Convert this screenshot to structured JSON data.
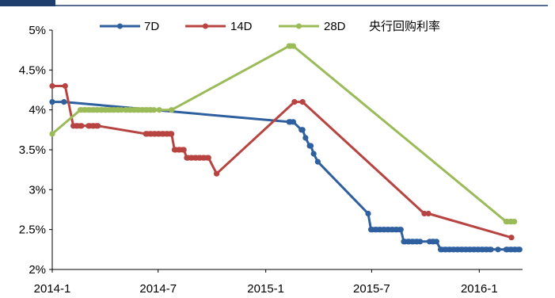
{
  "chart_data": {
    "type": "line",
    "title": "央行回购利率",
    "xlabel": "",
    "ylabel": "",
    "y_unit": "%",
    "ylim": [
      2,
      5
    ],
    "yticks": [
      {
        "value": 2,
        "label": "2%"
      },
      {
        "value": 2.5,
        "label": "2.5%"
      },
      {
        "value": 3,
        "label": "3%"
      },
      {
        "value": 3.5,
        "label": "3.5%"
      },
      {
        "value": 4,
        "label": "4%"
      },
      {
        "value": 4.5,
        "label": "4.5%"
      },
      {
        "value": 5,
        "label": "5%"
      }
    ],
    "xlim": [
      "2014-01-01",
      "2016-03-15"
    ],
    "xticks": [
      {
        "date": "2014-01-01",
        "label": "2014-1"
      },
      {
        "date": "2014-07-01",
        "label": "2014-7"
      },
      {
        "date": "2015-01-01",
        "label": "2015-1"
      },
      {
        "date": "2015-07-01",
        "label": "2015-7"
      },
      {
        "date": "2016-01-01",
        "label": "2016-1"
      }
    ],
    "legend": "top",
    "series": [
      {
        "name": "7D",
        "color": "#2e5f9e",
        "points": [
          [
            "2014-01-01",
            4.1
          ],
          [
            "2014-01-21",
            4.1
          ],
          [
            "2015-02-10",
            3.85
          ],
          [
            "2015-02-12",
            3.85
          ],
          [
            "2015-02-17",
            3.85
          ],
          [
            "2015-03-03",
            3.75
          ],
          [
            "2015-03-05",
            3.75
          ],
          [
            "2015-03-10",
            3.65
          ],
          [
            "2015-03-17",
            3.55
          ],
          [
            "2015-03-19",
            3.55
          ],
          [
            "2015-03-24",
            3.45
          ],
          [
            "2015-03-31",
            3.35
          ],
          [
            "2015-06-25",
            2.7
          ],
          [
            "2015-06-30",
            2.5
          ],
          [
            "2015-07-02",
            2.5
          ],
          [
            "2015-07-07",
            2.5
          ],
          [
            "2015-07-09",
            2.5
          ],
          [
            "2015-07-14",
            2.5
          ],
          [
            "2015-07-16",
            2.5
          ],
          [
            "2015-07-21",
            2.5
          ],
          [
            "2015-07-23",
            2.5
          ],
          [
            "2015-07-28",
            2.5
          ],
          [
            "2015-07-30",
            2.5
          ],
          [
            "2015-08-04",
            2.5
          ],
          [
            "2015-08-06",
            2.5
          ],
          [
            "2015-08-11",
            2.5
          ],
          [
            "2015-08-13",
            2.5
          ],
          [
            "2015-08-18",
            2.5
          ],
          [
            "2015-08-20",
            2.5
          ],
          [
            "2015-08-25",
            2.35
          ],
          [
            "2015-08-27",
            2.35
          ],
          [
            "2015-09-01",
            2.35
          ],
          [
            "2015-09-03",
            2.35
          ],
          [
            "2015-09-08",
            2.35
          ],
          [
            "2015-09-10",
            2.35
          ],
          [
            "2015-09-15",
            2.35
          ],
          [
            "2015-09-17",
            2.35
          ],
          [
            "2015-09-22",
            2.35
          ],
          [
            "2015-10-08",
            2.35
          ],
          [
            "2015-10-13",
            2.35
          ],
          [
            "2015-10-15",
            2.35
          ],
          [
            "2015-10-20",
            2.35
          ],
          [
            "2015-10-27",
            2.25
          ],
          [
            "2015-10-29",
            2.25
          ],
          [
            "2015-11-03",
            2.25
          ],
          [
            "2015-11-05",
            2.25
          ],
          [
            "2015-11-10",
            2.25
          ],
          [
            "2015-11-12",
            2.25
          ],
          [
            "2015-11-17",
            2.25
          ],
          [
            "2015-11-19",
            2.25
          ],
          [
            "2015-11-24",
            2.25
          ],
          [
            "2015-11-26",
            2.25
          ],
          [
            "2015-12-01",
            2.25
          ],
          [
            "2015-12-03",
            2.25
          ],
          [
            "2015-12-08",
            2.25
          ],
          [
            "2015-12-10",
            2.25
          ],
          [
            "2015-12-15",
            2.25
          ],
          [
            "2015-12-17",
            2.25
          ],
          [
            "2015-12-22",
            2.25
          ],
          [
            "2015-12-24",
            2.25
          ],
          [
            "2015-12-29",
            2.25
          ],
          [
            "2015-12-31",
            2.25
          ],
          [
            "2016-01-05",
            2.25
          ],
          [
            "2016-01-07",
            2.25
          ],
          [
            "2016-01-12",
            2.25
          ],
          [
            "2016-01-14",
            2.25
          ],
          [
            "2016-01-19",
            2.25
          ],
          [
            "2016-01-21",
            2.25
          ],
          [
            "2016-02-02",
            2.25
          ],
          [
            "2016-02-16",
            2.25
          ],
          [
            "2016-02-18",
            2.25
          ],
          [
            "2016-02-23",
            2.25
          ],
          [
            "2016-02-25",
            2.25
          ],
          [
            "2016-03-01",
            2.25
          ],
          [
            "2016-03-03",
            2.25
          ],
          [
            "2016-03-08",
            2.25
          ],
          [
            "2016-03-10",
            2.25
          ]
        ]
      },
      {
        "name": "14D",
        "color": "#b84442",
        "points": [
          [
            "2014-01-01",
            4.3
          ],
          [
            "2014-01-23",
            4.3
          ],
          [
            "2014-02-06",
            3.8
          ],
          [
            "2014-02-11",
            3.8
          ],
          [
            "2014-02-13",
            3.8
          ],
          [
            "2014-02-18",
            3.8
          ],
          [
            "2014-02-20",
            3.8
          ],
          [
            "2014-03-04",
            3.8
          ],
          [
            "2014-03-06",
            3.8
          ],
          [
            "2014-03-11",
            3.8
          ],
          [
            "2014-03-13",
            3.8
          ],
          [
            "2014-03-18",
            3.8
          ],
          [
            "2014-03-20",
            3.8
          ],
          [
            "2014-06-10",
            3.7
          ],
          [
            "2014-06-12",
            3.7
          ],
          [
            "2014-06-17",
            3.7
          ],
          [
            "2014-06-19",
            3.7
          ],
          [
            "2014-06-24",
            3.7
          ],
          [
            "2014-06-26",
            3.7
          ],
          [
            "2014-07-01",
            3.7
          ],
          [
            "2014-07-03",
            3.7
          ],
          [
            "2014-07-08",
            3.7
          ],
          [
            "2014-07-10",
            3.7
          ],
          [
            "2014-07-15",
            3.7
          ],
          [
            "2014-07-17",
            3.7
          ],
          [
            "2014-07-22",
            3.7
          ],
          [
            "2014-07-24",
            3.7
          ],
          [
            "2014-07-29",
            3.5
          ],
          [
            "2014-07-31",
            3.5
          ],
          [
            "2014-08-05",
            3.5
          ],
          [
            "2014-08-07",
            3.5
          ],
          [
            "2014-08-12",
            3.5
          ],
          [
            "2014-08-14",
            3.5
          ],
          [
            "2014-08-19",
            3.4
          ],
          [
            "2014-08-21",
            3.4
          ],
          [
            "2014-08-26",
            3.4
          ],
          [
            "2014-08-28",
            3.4
          ],
          [
            "2014-09-02",
            3.4
          ],
          [
            "2014-09-04",
            3.4
          ],
          [
            "2014-09-09",
            3.4
          ],
          [
            "2014-09-11",
            3.4
          ],
          [
            "2014-09-16",
            3.4
          ],
          [
            "2014-09-18",
            3.4
          ],
          [
            "2014-09-23",
            3.4
          ],
          [
            "2014-09-25",
            3.4
          ],
          [
            "2014-10-09",
            3.2
          ],
          [
            "2015-02-19",
            4.1
          ],
          [
            "2015-03-05",
            4.1
          ],
          [
            "2015-09-29",
            2.7
          ],
          [
            "2015-10-06",
            2.7
          ],
          [
            "2016-02-25",
            2.4
          ]
        ]
      },
      {
        "name": "28D",
        "color": "#9bbb59",
        "points": [
          [
            "2014-01-01",
            3.7
          ],
          [
            "2014-02-18",
            4.0
          ],
          [
            "2014-02-20",
            4.0
          ],
          [
            "2014-02-25",
            4.0
          ],
          [
            "2014-02-27",
            4.0
          ],
          [
            "2014-03-04",
            4.0
          ],
          [
            "2014-03-06",
            4.0
          ],
          [
            "2014-03-11",
            4.0
          ],
          [
            "2014-03-13",
            4.0
          ],
          [
            "2014-03-18",
            4.0
          ],
          [
            "2014-03-20",
            4.0
          ],
          [
            "2014-03-25",
            4.0
          ],
          [
            "2014-03-27",
            4.0
          ],
          [
            "2014-04-01",
            4.0
          ],
          [
            "2014-04-03",
            4.0
          ],
          [
            "2014-04-08",
            4.0
          ],
          [
            "2014-04-10",
            4.0
          ],
          [
            "2014-04-15",
            4.0
          ],
          [
            "2014-04-17",
            4.0
          ],
          [
            "2014-04-22",
            4.0
          ],
          [
            "2014-04-24",
            4.0
          ],
          [
            "2014-04-29",
            4.0
          ],
          [
            "2014-05-06",
            4.0
          ],
          [
            "2014-05-08",
            4.0
          ],
          [
            "2014-05-13",
            4.0
          ],
          [
            "2014-05-15",
            4.0
          ],
          [
            "2014-05-20",
            4.0
          ],
          [
            "2014-05-22",
            4.0
          ],
          [
            "2014-05-27",
            4.0
          ],
          [
            "2014-05-29",
            4.0
          ],
          [
            "2014-06-03",
            4.0
          ],
          [
            "2014-06-05",
            4.0
          ],
          [
            "2014-06-10",
            4.0
          ],
          [
            "2014-06-12",
            4.0
          ],
          [
            "2014-06-17",
            4.0
          ],
          [
            "2014-06-19",
            4.0
          ],
          [
            "2014-06-24",
            4.0
          ],
          [
            "2014-07-03",
            4.0
          ],
          [
            "2014-07-24",
            4.0
          ],
          [
            "2015-02-10",
            4.8
          ],
          [
            "2015-02-12",
            4.8
          ],
          [
            "2015-02-17",
            4.8
          ],
          [
            "2016-02-16",
            2.6
          ],
          [
            "2016-02-18",
            2.6
          ],
          [
            "2016-02-23",
            2.6
          ],
          [
            "2016-02-25",
            2.6
          ],
          [
            "2016-03-01",
            2.6
          ]
        ]
      }
    ]
  }
}
